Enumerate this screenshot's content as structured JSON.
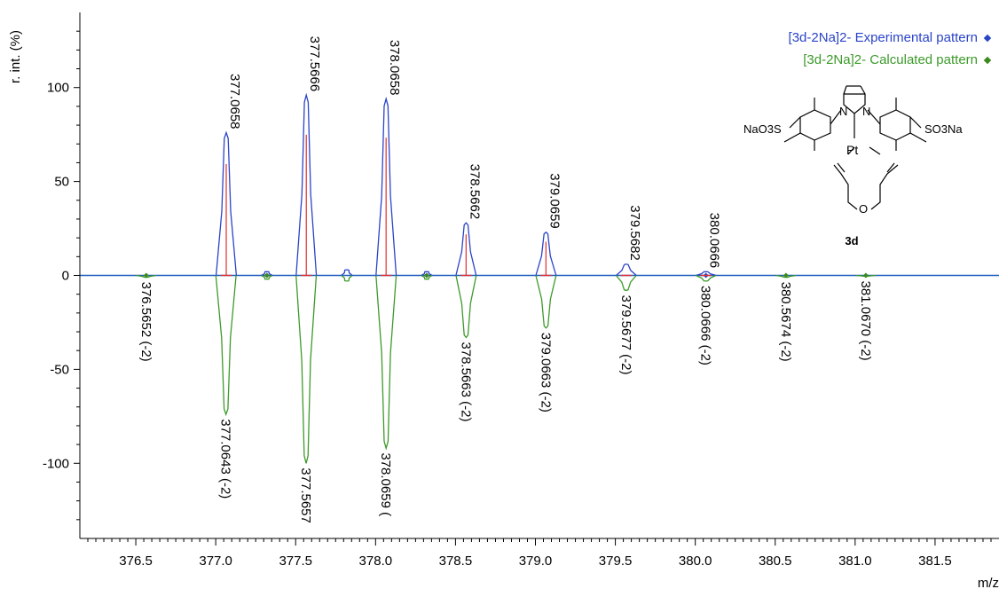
{
  "chart_data": {
    "type": "line",
    "ylabel": "r. int. (%)",
    "xlabel": "m/z",
    "xlim": [
      376.15,
      381.9
    ],
    "ylim": [
      -140,
      140
    ],
    "x_ticks": [
      "376.5",
      "377.0",
      "377.5",
      "378.0",
      "378.5",
      "379.0",
      "379.5",
      "380.0",
      "380.5",
      "381.0",
      "381.5"
    ],
    "x_tick_values": [
      376.5,
      377.0,
      377.5,
      378.0,
      378.5,
      379.0,
      379.5,
      380.0,
      380.5,
      381.0,
      381.5
    ],
    "y_ticks": [
      "100",
      "50",
      "0",
      "-50",
      "-100"
    ],
    "y_tick_values": [
      100,
      50,
      0,
      -50,
      -100
    ],
    "grid": false,
    "legend_position": "top-right",
    "series": [
      {
        "name": "[3d-2Na]2-  Experimental pattern",
        "color": "#2a44c8",
        "marker_color": "#2a44c8",
        "peaks": [
          {
            "x": 377.0658,
            "y": 76,
            "label": "377.0658"
          },
          {
            "x": 377.5666,
            "y": 96,
            "label": "377.5666"
          },
          {
            "x": 378.0658,
            "y": 94,
            "label": "378.0658"
          },
          {
            "x": 378.5662,
            "y": 28,
            "label": "378.5662"
          },
          {
            "x": 379.0659,
            "y": 23,
            "label": "379.0659"
          },
          {
            "x": 379.5682,
            "y": 6,
            "label": "379.5682"
          },
          {
            "x": 380.0666,
            "y": 2,
            "label": "380.0666"
          }
        ],
        "minor_peaks": [
          {
            "x": 377.32,
            "y": 2
          },
          {
            "x": 377.82,
            "y": 3
          },
          {
            "x": 378.32,
            "y": 2
          }
        ]
      },
      {
        "name": "[3d-2Na]2-  Calculated pattern",
        "color": "#3c9a2a",
        "marker_color": "#3c8a1e",
        "peaks": [
          {
            "x": 376.5652,
            "y": -1,
            "label": "376.5652 (-2)"
          },
          {
            "x": 377.0643,
            "y": -74,
            "label": "377.0643 (-2)"
          },
          {
            "x": 377.5657,
            "y": -100,
            "label": "377.5657"
          },
          {
            "x": 378.0659,
            "y": -92,
            "label": "378.0659 ("
          },
          {
            "x": 378.5663,
            "y": -33,
            "label": "378.5663 (-2)"
          },
          {
            "x": 379.0663,
            "y": -28,
            "label": "379.0663 (-2)"
          },
          {
            "x": 379.5677,
            "y": -8,
            "label": "379.5677 (-2)"
          },
          {
            "x": 380.0666,
            "y": -3,
            "label": "380.0666 (-2)"
          },
          {
            "x": 380.5674,
            "y": -1,
            "label": "380.5674 (-2)"
          },
          {
            "x": 381.067,
            "y": -0.5,
            "label": "381.0670 (-2)"
          }
        ],
        "minor_peaks": [
          {
            "x": 377.32,
            "y": -2
          },
          {
            "x": 377.82,
            "y": -3
          },
          {
            "x": 378.32,
            "y": -2
          }
        ]
      }
    ],
    "stick_color": "#e03030",
    "baseline_color": "#1f5fbf"
  },
  "structure": {
    "left_group": "NaO3S",
    "right_group": "SO3Na",
    "metal": "Pt",
    "nitrogen": "N",
    "oxygen": "O",
    "compound": "3d"
  }
}
